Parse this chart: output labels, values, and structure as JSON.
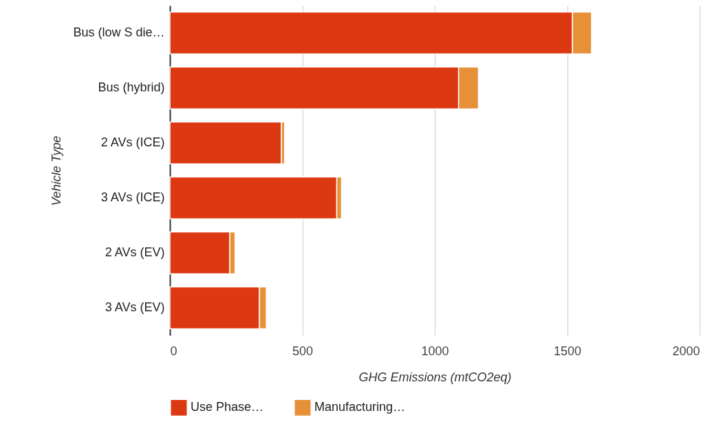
{
  "chart_data": {
    "type": "bar",
    "orientation": "horizontal",
    "stacked": true,
    "xlabel": "GHG Emissions (mtCO2eq)",
    "ylabel": "Vehicle Type",
    "categories": [
      "Bus (low S die…",
      "Bus (hybrid)",
      "2 AVs (ICE)",
      "3 AVs (ICE)",
      "2 AVs (EV)",
      "3 AVs (EV)"
    ],
    "series": [
      {
        "name": "Use Phase…",
        "color": "#dc3912",
        "values": [
          1520,
          1090,
          421,
          630,
          226,
          338
        ]
      },
      {
        "name": "Manufacturing…",
        "color": "#e69138",
        "values": [
          72,
          75,
          12,
          18,
          20,
          26
        ]
      }
    ],
    "xlim": [
      0,
      2000
    ],
    "xticks": [
      0,
      500,
      1000,
      1500,
      2000
    ],
    "grid": "x",
    "legend": "bottom"
  }
}
